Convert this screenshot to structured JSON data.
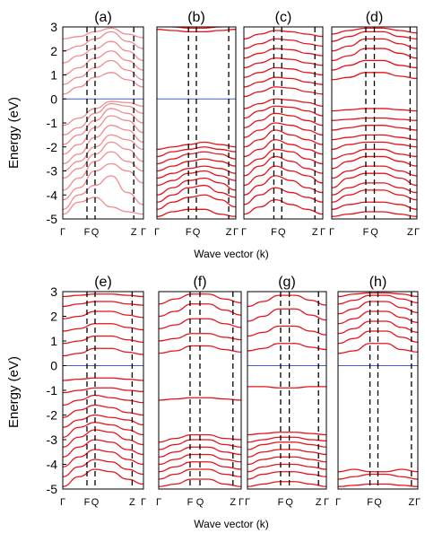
{
  "figure": {
    "ylabel": "Energy (eV)",
    "xlabel": "Wave vector (k)",
    "colors": {
      "band": "#e8121b",
      "band_light": "#f28a8f",
      "fermi": "#3f5fd6",
      "kpath": "#000000"
    }
  },
  "chart_data": [
    {
      "type": "line",
      "title": "(a)",
      "xlabel": "Wave vector (k)",
      "ylabel": "Energy (eV)",
      "ylim": [
        -5,
        3
      ],
      "yticks": [
        -5,
        -4,
        -3,
        -2,
        -1,
        0,
        1,
        2,
        3
      ],
      "kpoints": [
        {
          "label": "Γ",
          "x": 0.0
        },
        {
          "label": "F",
          "x": 0.3
        },
        {
          "label": "Q",
          "x": 0.4
        },
        {
          "label": "Z",
          "x": 0.88
        },
        {
          "label": "Γ",
          "x": 1.0
        }
      ],
      "fermi_level": 0,
      "band_color": "light",
      "bands": [
        [
          -4.8,
          -4.3,
          -4.1,
          -4.5,
          -4.7,
          -4.8
        ],
        [
          -4.6,
          -4.0,
          -3.6,
          -3.2,
          -3.9,
          -4.4
        ],
        [
          -4.2,
          -3.7,
          -3.0,
          -2.7,
          -3.0,
          -3.5
        ],
        [
          -3.8,
          -3.3,
          -2.6,
          -2.2,
          -2.6,
          -3.0
        ],
        [
          -3.3,
          -2.9,
          -2.3,
          -1.8,
          -2.1,
          -2.6
        ],
        [
          -3.0,
          -2.6,
          -2.0,
          -1.5,
          -1.7,
          -2.1
        ],
        [
          -2.7,
          -2.3,
          -1.6,
          -1.1,
          -1.3,
          -1.8
        ],
        [
          -2.3,
          -1.9,
          -1.2,
          -0.7,
          -0.9,
          -1.4
        ],
        [
          -1.9,
          -1.5,
          -0.9,
          -0.4,
          -0.6,
          -1.0
        ],
        [
          -1.5,
          -1.2,
          -0.6,
          -0.2,
          -0.3,
          -0.6
        ],
        [
          -1.1,
          -0.8,
          -0.4,
          -0.1,
          -0.15,
          -0.3
        ],
        [
          0.2,
          0.5,
          0.9,
          1.1,
          0.8,
          0.5
        ],
        [
          0.6,
          0.9,
          1.3,
          1.6,
          1.2,
          0.8
        ],
        [
          1.0,
          1.3,
          1.7,
          2.0,
          1.6,
          1.2
        ],
        [
          1.5,
          1.8,
          2.1,
          2.4,
          2.0,
          1.6
        ],
        [
          2.0,
          2.2,
          2.5,
          2.8,
          2.4,
          2.1
        ],
        [
          2.5,
          2.6,
          2.8,
          2.95,
          2.7,
          2.55
        ]
      ]
    },
    {
      "type": "line",
      "title": "(b)",
      "xlabel": "Wave vector (k)",
      "ylabel": "Energy (eV)",
      "ylim": [
        -5,
        3
      ],
      "yticks": [
        -5,
        -4,
        -3,
        -2,
        -1,
        0,
        1,
        2,
        3
      ],
      "kpoints": [
        {
          "label": "Γ",
          "x": 0.0
        },
        {
          "label": "F",
          "x": 0.4
        },
        {
          "label": "Q",
          "x": 0.5
        },
        {
          "label": "Z",
          "x": 0.91
        },
        {
          "label": "Γ",
          "x": 1.0
        }
      ],
      "fermi_level": 0,
      "band_color": "dark",
      "bands": [
        [
          -4.9,
          -4.7,
          -4.6,
          -4.6,
          -4.8,
          -4.9
        ],
        [
          -4.6,
          -4.3,
          -4.1,
          -4.0,
          -4.2,
          -4.5
        ],
        [
          -4.3,
          -4.0,
          -3.7,
          -3.6,
          -3.9,
          -4.1
        ],
        [
          -4.0,
          -3.7,
          -3.4,
          -3.3,
          -3.5,
          -3.8
        ],
        [
          -3.6,
          -3.4,
          -3.1,
          -3.0,
          -3.2,
          -3.4
        ],
        [
          -3.3,
          -3.1,
          -2.9,
          -2.8,
          -2.9,
          -3.1
        ],
        [
          -3.0,
          -2.8,
          -2.6,
          -2.5,
          -2.6,
          -2.8
        ],
        [
          -2.7,
          -2.5,
          -2.3,
          -2.2,
          -2.3,
          -2.5
        ],
        [
          -2.4,
          -2.2,
          -2.1,
          -2.0,
          -2.1,
          -2.2
        ],
        [
          -2.1,
          -2.0,
          -1.9,
          -1.8,
          -1.9,
          -2.0
        ],
        [
          2.9,
          2.85,
          2.8,
          2.8,
          2.85,
          2.9
        ],
        [
          3.2,
          3.0,
          2.95,
          2.95,
          3.0,
          3.1
        ]
      ]
    },
    {
      "type": "line",
      "title": "(c)",
      "xlabel": "Wave vector (k)",
      "ylabel": "Energy (eV)",
      "ylim": [
        -5,
        3
      ],
      "yticks": [
        -5,
        -4,
        -3,
        -2,
        -1,
        0,
        1,
        2,
        3
      ],
      "kpoints": [
        {
          "label": "Γ",
          "x": 0.0
        },
        {
          "label": "F",
          "x": 0.38
        },
        {
          "label": "Q",
          "x": 0.48
        },
        {
          "label": "Z",
          "x": 0.9
        },
        {
          "label": "Γ",
          "x": 1.0
        }
      ],
      "fermi_level": null,
      "band_color": "dark",
      "bands": [
        [
          -4.8,
          -4.5,
          -4.2,
          -4.4,
          -4.6,
          -4.8
        ],
        [
          -4.4,
          -4.0,
          -3.7,
          -3.9,
          -4.1,
          -4.3
        ],
        [
          -4.0,
          -3.6,
          -3.2,
          -3.4,
          -3.7,
          -3.9
        ],
        [
          -3.6,
          -3.2,
          -2.8,
          -3.0,
          -3.2,
          -3.5
        ],
        [
          -3.2,
          -2.8,
          -2.4,
          -2.6,
          -2.9,
          -3.1
        ],
        [
          -2.8,
          -2.5,
          -2.1,
          -2.2,
          -2.5,
          -2.7
        ],
        [
          -2.4,
          -2.1,
          -1.7,
          -1.9,
          -2.1,
          -2.3
        ],
        [
          -2.0,
          -1.7,
          -1.3,
          -1.5,
          -1.7,
          -1.9
        ],
        [
          -1.6,
          -1.3,
          -1.0,
          -1.1,
          -1.3,
          -1.5
        ],
        [
          -1.2,
          -0.9,
          -0.6,
          -0.7,
          -0.9,
          -1.1
        ],
        [
          -0.8,
          -0.5,
          -0.3,
          -0.35,
          -0.5,
          -0.7
        ],
        [
          -0.4,
          -0.2,
          0.0,
          -0.05,
          -0.15,
          -0.3
        ],
        [
          0.1,
          0.3,
          0.5,
          0.45,
          0.3,
          0.2
        ],
        [
          0.5,
          0.7,
          0.9,
          0.85,
          0.7,
          0.6
        ],
        [
          0.9,
          1.1,
          1.3,
          1.25,
          1.1,
          1.0
        ],
        [
          1.3,
          1.5,
          1.7,
          1.65,
          1.5,
          1.4
        ],
        [
          1.7,
          1.9,
          2.1,
          2.05,
          1.9,
          1.8
        ],
        [
          2.1,
          2.3,
          2.5,
          2.45,
          2.3,
          2.2
        ],
        [
          2.5,
          2.7,
          2.85,
          2.8,
          2.7,
          2.6
        ]
      ]
    },
    {
      "type": "line",
      "title": "(d)",
      "xlabel": "Wave vector (k)",
      "ylabel": "Energy (eV)",
      "ylim": [
        -5,
        3
      ],
      "yticks": [
        -5,
        -4,
        -3,
        -2,
        -1,
        0,
        1,
        2,
        3
      ],
      "kpoints": [
        {
          "label": "Γ",
          "x": 0.0
        },
        {
          "label": "F",
          "x": 0.4
        },
        {
          "label": "Q",
          "x": 0.5
        },
        {
          "label": "Z",
          "x": 0.92
        },
        {
          "label": "Γ",
          "x": 1.0
        }
      ],
      "fermi_level": null,
      "band_color": "dark",
      "bands": [
        [
          -4.9,
          -4.8,
          -4.7,
          -4.7,
          -4.8,
          -4.9
        ],
        [
          -4.6,
          -4.4,
          -4.3,
          -4.3,
          -4.4,
          -4.6
        ],
        [
          -4.3,
          -4.0,
          -3.8,
          -3.8,
          -4.0,
          -4.2
        ],
        [
          -4.0,
          -3.7,
          -3.5,
          -3.5,
          -3.7,
          -3.9
        ],
        [
          -3.7,
          -3.3,
          -3.1,
          -3.1,
          -3.3,
          -3.6
        ],
        [
          -3.3,
          -3.0,
          -2.8,
          -2.8,
          -3.0,
          -3.2
        ],
        [
          -2.9,
          -2.6,
          -2.4,
          -2.4,
          -2.6,
          -2.8
        ],
        [
          -2.5,
          -2.3,
          -2.1,
          -2.1,
          -2.3,
          -2.4
        ],
        [
          -2.1,
          -1.9,
          -1.8,
          -1.8,
          -1.9,
          -2.0
        ],
        [
          -1.7,
          -1.6,
          -1.5,
          -1.5,
          -1.6,
          -1.7
        ],
        [
          -1.3,
          -1.2,
          -1.1,
          -1.1,
          -1.2,
          -1.3
        ],
        [
          -0.9,
          -0.85,
          -0.8,
          -0.8,
          -0.85,
          -0.9
        ],
        [
          -0.5,
          -0.45,
          -0.4,
          -0.4,
          -0.45,
          -0.5
        ],
        [
          0.8,
          0.9,
          1.1,
          1.1,
          0.95,
          0.85
        ],
        [
          1.2,
          1.4,
          1.6,
          1.6,
          1.4,
          1.3
        ],
        [
          1.6,
          1.8,
          2.1,
          2.1,
          1.9,
          1.7
        ],
        [
          2.0,
          2.2,
          2.5,
          2.5,
          2.3,
          2.1
        ],
        [
          2.4,
          2.6,
          2.8,
          2.8,
          2.6,
          2.5
        ],
        [
          2.7,
          2.85,
          2.95,
          2.95,
          2.85,
          2.75
        ]
      ]
    },
    {
      "type": "line",
      "title": "(e)",
      "xlabel": "Wave vector (k)",
      "ylabel": "Energy (eV)",
      "ylim": [
        -5,
        3
      ],
      "yticks": [
        -5,
        -4,
        -3,
        -2,
        -1,
        0,
        1,
        2,
        3
      ],
      "kpoints": [
        {
          "label": "Γ",
          "x": 0.0
        },
        {
          "label": "F",
          "x": 0.3
        },
        {
          "label": "Q",
          "x": 0.4
        },
        {
          "label": "Z",
          "x": 0.86
        },
        {
          "label": "Γ",
          "x": 1.0
        }
      ],
      "fermi_level": 0,
      "band_color": "dark",
      "bands": [
        [
          -4.9,
          -4.5,
          -4.2,
          -4.3,
          -4.6,
          -4.8
        ],
        [
          -4.5,
          -4.1,
          -3.8,
          -3.9,
          -4.2,
          -4.4
        ],
        [
          -4.1,
          -3.7,
          -3.4,
          -3.5,
          -3.8,
          -4.0
        ],
        [
          -3.7,
          -3.3,
          -3.0,
          -3.1,
          -3.4,
          -3.6
        ],
        [
          -3.3,
          -2.9,
          -2.6,
          -2.7,
          -3.0,
          -3.2
        ],
        [
          -2.9,
          -2.5,
          -2.3,
          -2.4,
          -2.6,
          -2.8
        ],
        [
          -2.5,
          -2.2,
          -2.0,
          -2.1,
          -2.2,
          -2.4
        ],
        [
          -2.1,
          -1.8,
          -1.6,
          -1.7,
          -1.9,
          -2.0
        ],
        [
          -1.6,
          -1.4,
          -1.2,
          -1.3,
          -1.4,
          -1.5
        ],
        [
          -1.1,
          -1.0,
          -0.9,
          -0.9,
          -1.0,
          -1.05
        ],
        [
          -0.6,
          -0.55,
          -0.5,
          -0.5,
          -0.55,
          -0.6
        ],
        [
          0.4,
          0.5,
          0.7,
          0.7,
          0.55,
          0.45
        ],
        [
          0.9,
          1.0,
          1.2,
          1.2,
          1.05,
          0.95
        ],
        [
          1.4,
          1.5,
          1.7,
          1.7,
          1.55,
          1.45
        ],
        [
          1.9,
          2.0,
          2.2,
          2.2,
          2.05,
          1.95
        ],
        [
          2.4,
          2.5,
          2.6,
          2.6,
          2.5,
          2.45
        ],
        [
          2.8,
          2.85,
          2.9,
          2.9,
          2.85,
          2.8
        ]
      ]
    },
    {
      "type": "line",
      "title": "(f)",
      "xlabel": "Wave vector (k)",
      "ylabel": "Energy (eV)",
      "ylim": [
        -5,
        3
      ],
      "yticks": [
        -5,
        -4,
        -3,
        -2,
        -1,
        0,
        1,
        2,
        3
      ],
      "kpoints": [
        {
          "label": "Γ",
          "x": 0.0
        },
        {
          "label": "F",
          "x": 0.38
        },
        {
          "label": "Q",
          "x": 0.5
        },
        {
          "label": "Z",
          "x": 0.9
        },
        {
          "label": "Γ",
          "x": 1.0
        }
      ],
      "fermi_level": null,
      "band_color": "dark",
      "bands": [
        [
          -4.9,
          -4.8,
          -4.6,
          -4.6,
          -4.8,
          -4.9
        ],
        [
          -4.6,
          -4.4,
          -4.2,
          -4.2,
          -4.4,
          -4.5
        ],
        [
          -4.3,
          -4.1,
          -3.9,
          -3.9,
          -4.1,
          -4.2
        ],
        [
          -4.0,
          -3.8,
          -3.6,
          -3.6,
          -3.8,
          -3.9
        ],
        [
          -3.7,
          -3.5,
          -3.3,
          -3.3,
          -3.5,
          -3.6
        ],
        [
          -3.4,
          -3.2,
          -3.0,
          -3.0,
          -3.2,
          -3.3
        ],
        [
          -3.1,
          -2.95,
          -2.8,
          -2.8,
          -2.95,
          -3.0
        ],
        [
          -1.4,
          -1.35,
          -1.3,
          -1.3,
          -1.35,
          -1.4
        ],
        [
          0.5,
          0.6,
          0.8,
          0.8,
          0.65,
          0.55
        ],
        [
          1.0,
          1.1,
          1.3,
          1.3,
          1.15,
          1.05
        ],
        [
          1.5,
          1.65,
          1.9,
          1.9,
          1.7,
          1.55
        ],
        [
          2.0,
          2.2,
          2.5,
          2.5,
          2.25,
          2.05
        ],
        [
          2.5,
          2.7,
          2.9,
          2.9,
          2.7,
          2.55
        ]
      ]
    },
    {
      "type": "line",
      "title": "(g)",
      "xlabel": "Wave vector (k)",
      "ylabel": "Energy (eV)",
      "ylim": [
        -5,
        3
      ],
      "yticks": [
        -5,
        -4,
        -3,
        -2,
        -1,
        0,
        1,
        2,
        3
      ],
      "kpoints": [
        {
          "label": "Γ",
          "x": 0.0
        },
        {
          "label": "F",
          "x": 0.42
        },
        {
          "label": "Q",
          "x": 0.53
        },
        {
          "label": "Z",
          "x": 0.9
        },
        {
          "label": "Γ",
          "x": 1.0
        }
      ],
      "fermi_level": 0,
      "band_color": "dark",
      "bands": [
        [
          -4.9,
          -4.8,
          -4.7,
          -4.7,
          -4.8,
          -4.9
        ],
        [
          -4.6,
          -4.4,
          -4.3,
          -4.3,
          -4.4,
          -4.5
        ],
        [
          -4.3,
          -4.1,
          -4.0,
          -4.0,
          -4.1,
          -4.2
        ],
        [
          -4.0,
          -3.8,
          -3.7,
          -3.7,
          -3.8,
          -3.9
        ],
        [
          -3.7,
          -3.5,
          -3.4,
          -3.4,
          -3.5,
          -3.6
        ],
        [
          -3.4,
          -3.2,
          -3.1,
          -3.1,
          -3.2,
          -3.3
        ],
        [
          -3.1,
          -3.0,
          -2.9,
          -2.9,
          -3.0,
          -3.05
        ],
        [
          -2.8,
          -2.75,
          -2.7,
          -2.7,
          -2.75,
          -2.8
        ],
        [
          -0.85,
          -0.85,
          -0.9,
          -0.9,
          -0.85,
          -0.85
        ],
        [
          0.6,
          0.7,
          0.9,
          0.9,
          0.75,
          0.65
        ],
        [
          1.2,
          1.35,
          1.6,
          1.6,
          1.4,
          1.25
        ],
        [
          1.8,
          2.0,
          2.3,
          2.3,
          2.05,
          1.85
        ],
        [
          2.4,
          2.6,
          2.85,
          2.85,
          2.65,
          2.45
        ]
      ]
    },
    {
      "type": "line",
      "title": "(h)",
      "xlabel": "Wave vector (k)",
      "ylabel": "Energy (eV)",
      "ylim": [
        -5,
        3
      ],
      "yticks": [
        -5,
        -4,
        -3,
        -2,
        -1,
        0,
        1,
        2,
        3
      ],
      "kpoints": [
        {
          "label": "Γ",
          "x": 0.0
        },
        {
          "label": "F",
          "x": 0.4
        },
        {
          "label": "Q",
          "x": 0.5
        },
        {
          "label": "Z",
          "x": 0.92
        },
        {
          "label": "Γ",
          "x": 1.0
        }
      ],
      "fermi_level": 0,
      "band_color": "dark",
      "bands": [
        [
          -4.9,
          -4.85,
          -4.8,
          -4.8,
          -4.85,
          -4.9
        ],
        [
          -4.6,
          -4.5,
          -4.4,
          -4.4,
          -4.5,
          -4.6
        ],
        [
          -4.3,
          -4.2,
          -4.3,
          -4.3,
          -4.2,
          -4.3
        ],
        [
          0.5,
          0.6,
          0.9,
          0.9,
          0.65,
          0.55
        ],
        [
          0.9,
          1.1,
          1.4,
          1.4,
          1.15,
          0.95
        ],
        [
          1.3,
          1.5,
          1.8,
          1.8,
          1.55,
          1.35
        ],
        [
          1.7,
          1.9,
          2.2,
          2.2,
          1.95,
          1.75
        ],
        [
          2.1,
          2.3,
          2.6,
          2.6,
          2.35,
          2.15
        ],
        [
          2.5,
          2.65,
          2.85,
          2.85,
          2.7,
          2.55
        ],
        [
          2.8,
          2.9,
          2.95,
          2.95,
          2.9,
          2.8
        ]
      ]
    }
  ]
}
